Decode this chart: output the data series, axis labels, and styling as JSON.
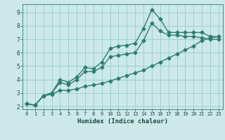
{
  "xlabel": "Humidex (Indice chaleur)",
  "ylabel": "",
  "background_color": "#cce8e8",
  "grid_color": "#99cccc",
  "line_color": "#2e7d6e",
  "xlim": [
    -0.5,
    23.5
  ],
  "ylim": [
    1.8,
    9.6
  ],
  "xticks": [
    0,
    1,
    2,
    3,
    4,
    5,
    6,
    7,
    8,
    9,
    10,
    11,
    12,
    13,
    14,
    15,
    16,
    17,
    18,
    19,
    20,
    21,
    22,
    23
  ],
  "yticks": [
    2,
    3,
    4,
    5,
    6,
    7,
    8,
    9
  ],
  "line1_x": [
    0,
    1,
    2,
    3,
    4,
    5,
    6,
    7,
    8,
    9,
    10,
    11,
    12,
    13,
    14,
    15,
    16,
    17,
    18,
    19,
    20,
    21,
    22,
    23
  ],
  "line1_y": [
    2.2,
    2.1,
    2.8,
    3.0,
    4.0,
    3.8,
    4.2,
    4.9,
    4.8,
    5.3,
    6.3,
    6.5,
    6.55,
    6.7,
    7.8,
    9.2,
    8.5,
    7.5,
    7.5,
    7.5,
    7.5,
    7.5,
    7.2,
    7.2
  ],
  "line2_x": [
    0,
    1,
    2,
    3,
    4,
    5,
    6,
    7,
    8,
    9,
    10,
    11,
    12,
    13,
    14,
    15,
    16,
    17,
    18,
    19,
    20,
    21,
    22,
    23
  ],
  "line2_y": [
    2.2,
    2.1,
    2.8,
    3.0,
    3.8,
    3.6,
    4.0,
    4.6,
    4.6,
    4.9,
    5.7,
    5.8,
    5.9,
    6.0,
    6.9,
    8.2,
    7.6,
    7.3,
    7.3,
    7.2,
    7.2,
    7.1,
    7.0,
    7.0
  ],
  "line3_x": [
    0,
    1,
    2,
    3,
    4,
    5,
    6,
    7,
    8,
    9,
    10,
    11,
    12,
    13,
    14,
    15,
    16,
    17,
    18,
    19,
    20,
    21,
    22,
    23
  ],
  "line3_y": [
    2.2,
    2.1,
    2.8,
    2.9,
    3.2,
    3.2,
    3.3,
    3.5,
    3.6,
    3.7,
    3.9,
    4.1,
    4.3,
    4.5,
    4.7,
    5.0,
    5.3,
    5.6,
    5.9,
    6.2,
    6.5,
    6.9,
    7.1,
    7.2
  ],
  "marker": "D",
  "markersize": 2.5,
  "linewidth": 1.0
}
